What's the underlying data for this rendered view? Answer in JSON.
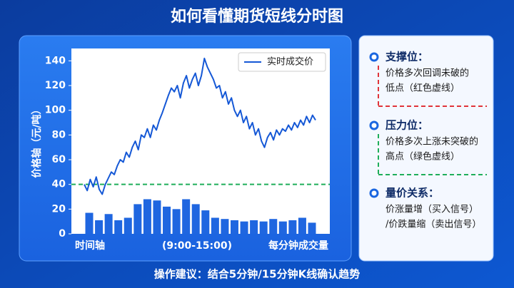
{
  "header": {
    "title": "如何看懂期货短线分时图"
  },
  "chart_data": {
    "type": "line",
    "ylabel": "价格轴（元/吨）",
    "series": [
      {
        "name": "实时成交价",
        "color": "#1558d6",
        "values": [
          40,
          35,
          44,
          38,
          46,
          36,
          32,
          40,
          45,
          50,
          48,
          55,
          60,
          58,
          66,
          62,
          70,
          75,
          68,
          80,
          78,
          85,
          78,
          88,
          84,
          92,
          98,
          105,
          112,
          118,
          115,
          120,
          110,
          122,
          128,
          118,
          125,
          130,
          120,
          128,
          142,
          135,
          130,
          125,
          118,
          120,
          110,
          115,
          105,
          110,
          100,
          95,
          100,
          90,
          95,
          85,
          90,
          80,
          85,
          75,
          70,
          78,
          82,
          76,
          84,
          80,
          85,
          83,
          88,
          84,
          90,
          86,
          92,
          88,
          95,
          90,
          96,
          92
        ]
      }
    ],
    "bars": {
      "color": "#1f66e0",
      "values": [
        17,
        11,
        16,
        11,
        13,
        24,
        28,
        27,
        22,
        20,
        28,
        24,
        19,
        13,
        12,
        11,
        10,
        11,
        10,
        12,
        10,
        11,
        13,
        9
      ]
    },
    "reference_line": {
      "value": 40,
      "color": "#1fae5a",
      "style": "dashed"
    },
    "ylim": [
      0,
      150
    ],
    "yticks": [
      0,
      20,
      40,
      60,
      80,
      100,
      120,
      140
    ],
    "annotations": [
      "时间轴",
      "(9:00-15:00)",
      "每分钟成交量"
    ],
    "legend": "upper right"
  },
  "notes": [
    {
      "title": "支撑位：",
      "lines": [
        "价格多次回调未破的",
        "低点（红色虚线）"
      ],
      "divider_color": "#e0343a"
    },
    {
      "title": "压力位：",
      "lines": [
        "价格多次上涨未突破的",
        "高点（绿色虚线）"
      ],
      "divider_color": "#1fae5a"
    },
    {
      "title": "量价关系：",
      "lines": [
        "价涨量增（买入信号）",
        "/价跌量缩（卖出信号）"
      ]
    }
  ],
  "footer": "操作建议：结合5分钟/15分钟K线确认趋势"
}
